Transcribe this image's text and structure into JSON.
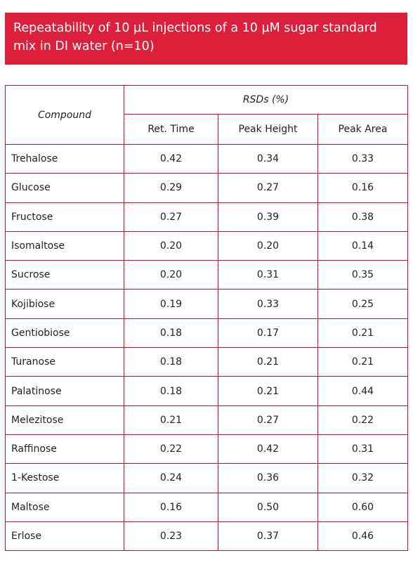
{
  "header": {
    "title": "Repeatability of 10 µL injections of a 10 µM sugar standard mix in DI water (n=10)"
  },
  "table": {
    "group_header": "RSDs (%)",
    "columns": [
      "Compound",
      "Ret. Time",
      "Peak Height",
      "Peak Area"
    ],
    "rows": [
      [
        "Trehalose",
        "0.42",
        "0.34",
        "0.33"
      ],
      [
        "Glucose",
        "0.29",
        "0.27",
        "0.16"
      ],
      [
        "Fructose",
        "0.27",
        "0.39",
        "0.38"
      ],
      [
        "Isomaltose",
        "0.20",
        "0.20",
        "0.14"
      ],
      [
        "Sucrose",
        "0.20",
        "0.31",
        "0.35"
      ],
      [
        "Kojibiose",
        "0.19",
        "0.33",
        "0.25"
      ],
      [
        "Gentiobiose",
        "0.18",
        "0.17",
        "0.21"
      ],
      [
        "Turanose",
        "0.18",
        "0.21",
        "0.21"
      ],
      [
        "Palatinose",
        "0.18",
        "0.21",
        "0.44"
      ],
      [
        "Melezitose",
        "0.21",
        "0.27",
        "0.22"
      ],
      [
        "Raffinose",
        "0.22",
        "0.42",
        "0.31"
      ],
      [
        "1-Kestose",
        "0.24",
        "0.36",
        "0.32"
      ],
      [
        "Maltose",
        "0.16",
        "0.50",
        "0.60"
      ],
      [
        "Erlose",
        "0.23",
        "0.37",
        "0.46"
      ]
    ]
  }
}
